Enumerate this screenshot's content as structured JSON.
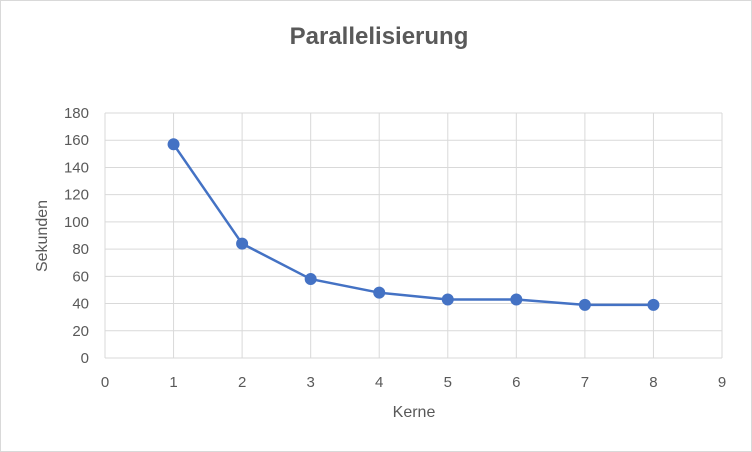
{
  "chart_data": {
    "type": "scatter",
    "title": "Parallelisierung",
    "xlabel": "Kerne",
    "ylabel": "Sekunden",
    "xlim": [
      0,
      9
    ],
    "ylim": [
      0,
      180
    ],
    "x_ticks": [
      0,
      1,
      2,
      3,
      4,
      5,
      6,
      7,
      8,
      9
    ],
    "y_ticks": [
      0,
      20,
      40,
      60,
      80,
      100,
      120,
      140,
      160,
      180
    ],
    "grid": true,
    "legend": "none",
    "series": [
      {
        "x": [
          1,
          2,
          3,
          4,
          5,
          6,
          7,
          8
        ],
        "y": [
          157,
          84,
          58,
          48,
          43,
          43,
          39,
          39
        ],
        "style": "line-with-markers",
        "color": "#4472c4"
      }
    ]
  }
}
